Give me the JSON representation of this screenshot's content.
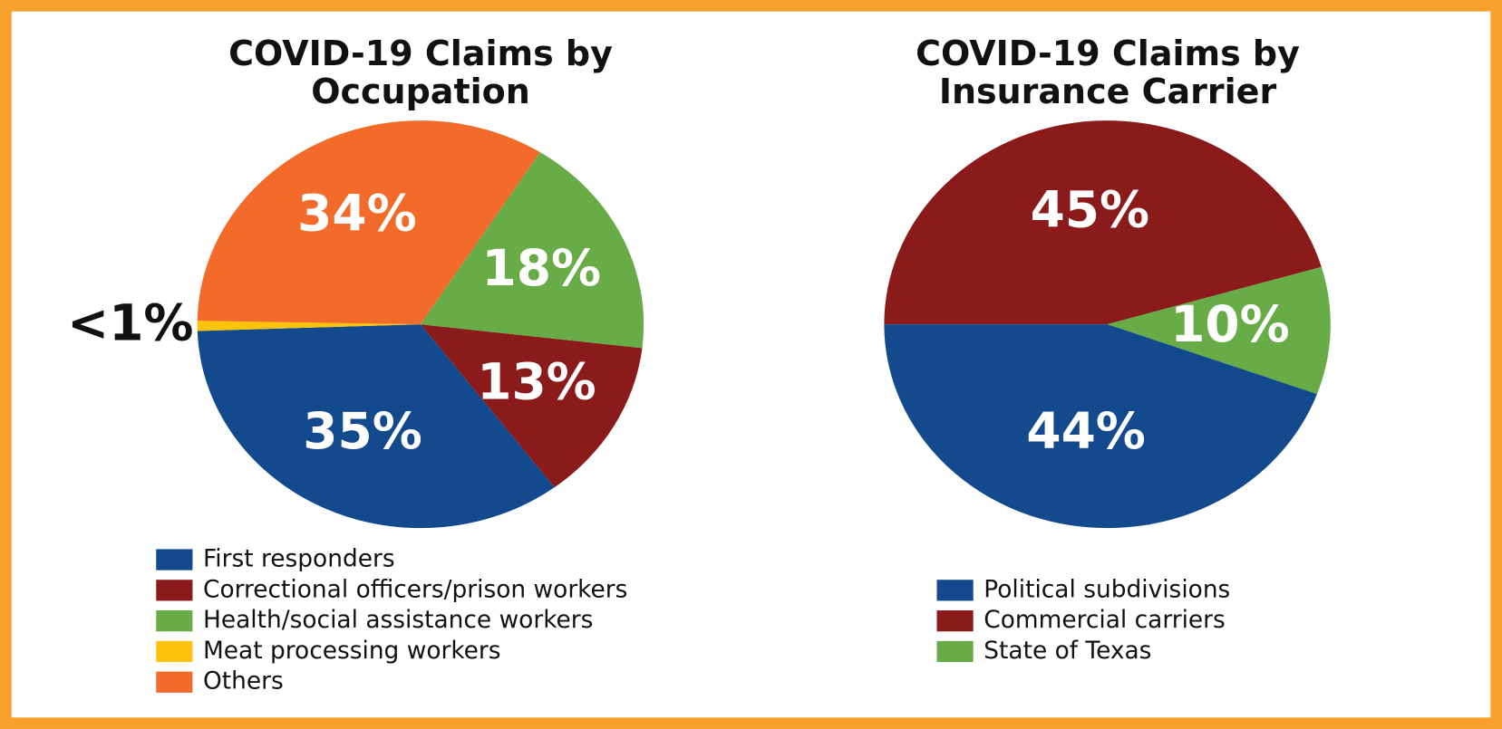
{
  "chart_data": [
    {
      "type": "pie",
      "title": "COVID-19 Claims by Occupation",
      "categories": [
        "First responders",
        "Correctional officers/prison workers",
        "Health/social assistance workers",
        "Meat processing workers",
        "Others"
      ],
      "values": [
        35,
        13,
        18,
        0.8,
        34
      ],
      "value_labels": [
        "35%",
        "13%",
        "18%",
        "<1%",
        "34%"
      ],
      "colors": [
        "#134a8e",
        "#8b1a1a",
        "#67ac46",
        "#fcc30b",
        "#f26b2b"
      ]
    },
    {
      "type": "pie",
      "title": "COVID-19 Claims by Insurance Carrier",
      "categories": [
        "Political subdivisions",
        "Commercial carriers",
        "State of Texas"
      ],
      "values": [
        44,
        45,
        10
      ],
      "value_labels": [
        "44%",
        "45%",
        "10%"
      ],
      "colors": [
        "#134a8e",
        "#8b1a1a",
        "#67ac46"
      ]
    }
  ]
}
